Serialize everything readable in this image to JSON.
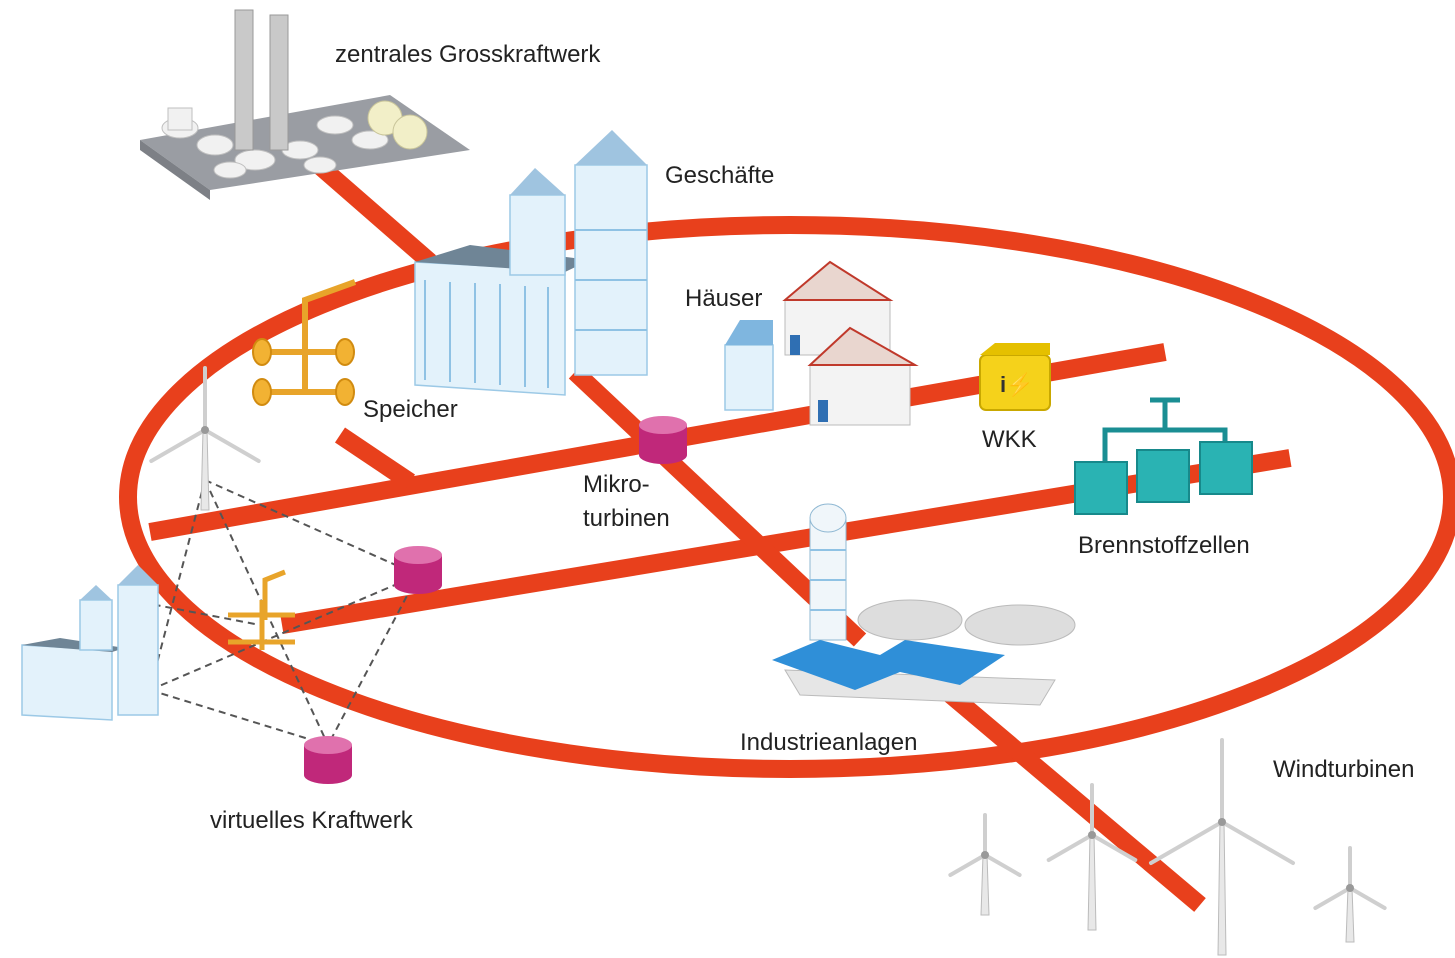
{
  "nodes": [
    {
      "label": "zentrales Grosskraftwerk"
    },
    {
      "label": "Geschäfte"
    },
    {
      "label": "Häuser"
    },
    {
      "label": "Speicher"
    },
    {
      "label": "WKK"
    },
    {
      "label": [
        "Mikro-",
        "turbinen"
      ]
    },
    {
      "label": "Brennstoffzellen"
    },
    {
      "label": "Industrieanlagen"
    },
    {
      "label": "Windturbinen"
    },
    {
      "label": "virtuelles Kraftwerk"
    }
  ]
}
